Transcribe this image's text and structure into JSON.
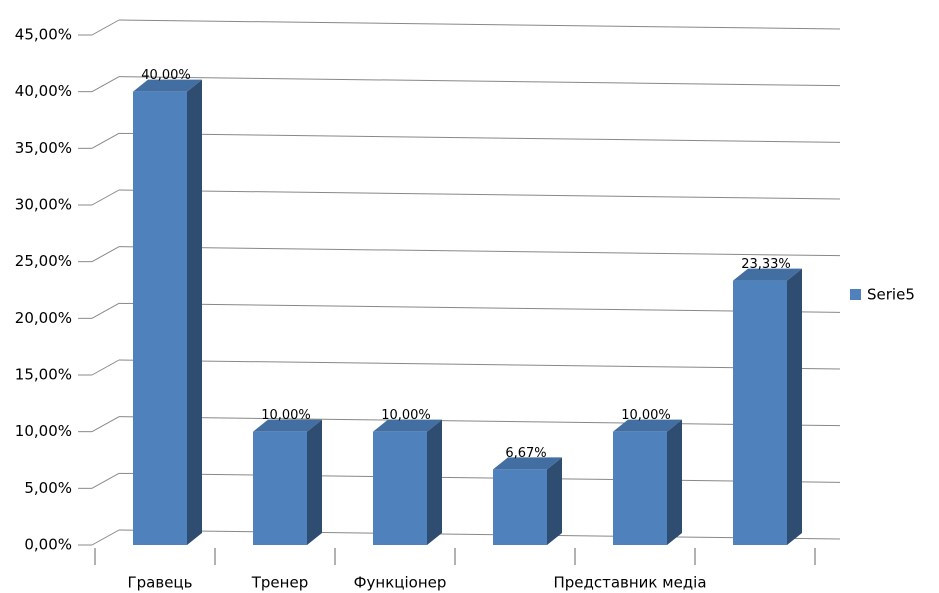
{
  "chart_data": {
    "type": "bar3d",
    "categories": [
      "Гравець",
      "Тренер",
      "Функціонер",
      null,
      "Представник медіа",
      null
    ],
    "series": [
      {
        "name": "Serie5",
        "color": "#4f81bd",
        "values": [
          40,
          10,
          10,
          6.67,
          10,
          23.33
        ],
        "value_labels": [
          "40,00%",
          "10,00%",
          "10,00%",
          "6,67%",
          "10,00%",
          "23,33%"
        ]
      }
    ],
    "ylim": [
      0,
      45
    ],
    "yticks": [
      {
        "value": 0,
        "label": "0,00%"
      },
      {
        "value": 5,
        "label": "5,00%"
      },
      {
        "value": 10,
        "label": "10,00%"
      },
      {
        "value": 15,
        "label": "15,00%"
      },
      {
        "value": 20,
        "label": "20,00%"
      },
      {
        "value": 25,
        "label": "25,00%"
      },
      {
        "value": 30,
        "label": "30,00%"
      },
      {
        "value": 35,
        "label": "35,00%"
      },
      {
        "value": 40,
        "label": "40,00%"
      },
      {
        "value": 45,
        "label": "45,00%"
      }
    ],
    "grid": true,
    "legend": "right"
  }
}
